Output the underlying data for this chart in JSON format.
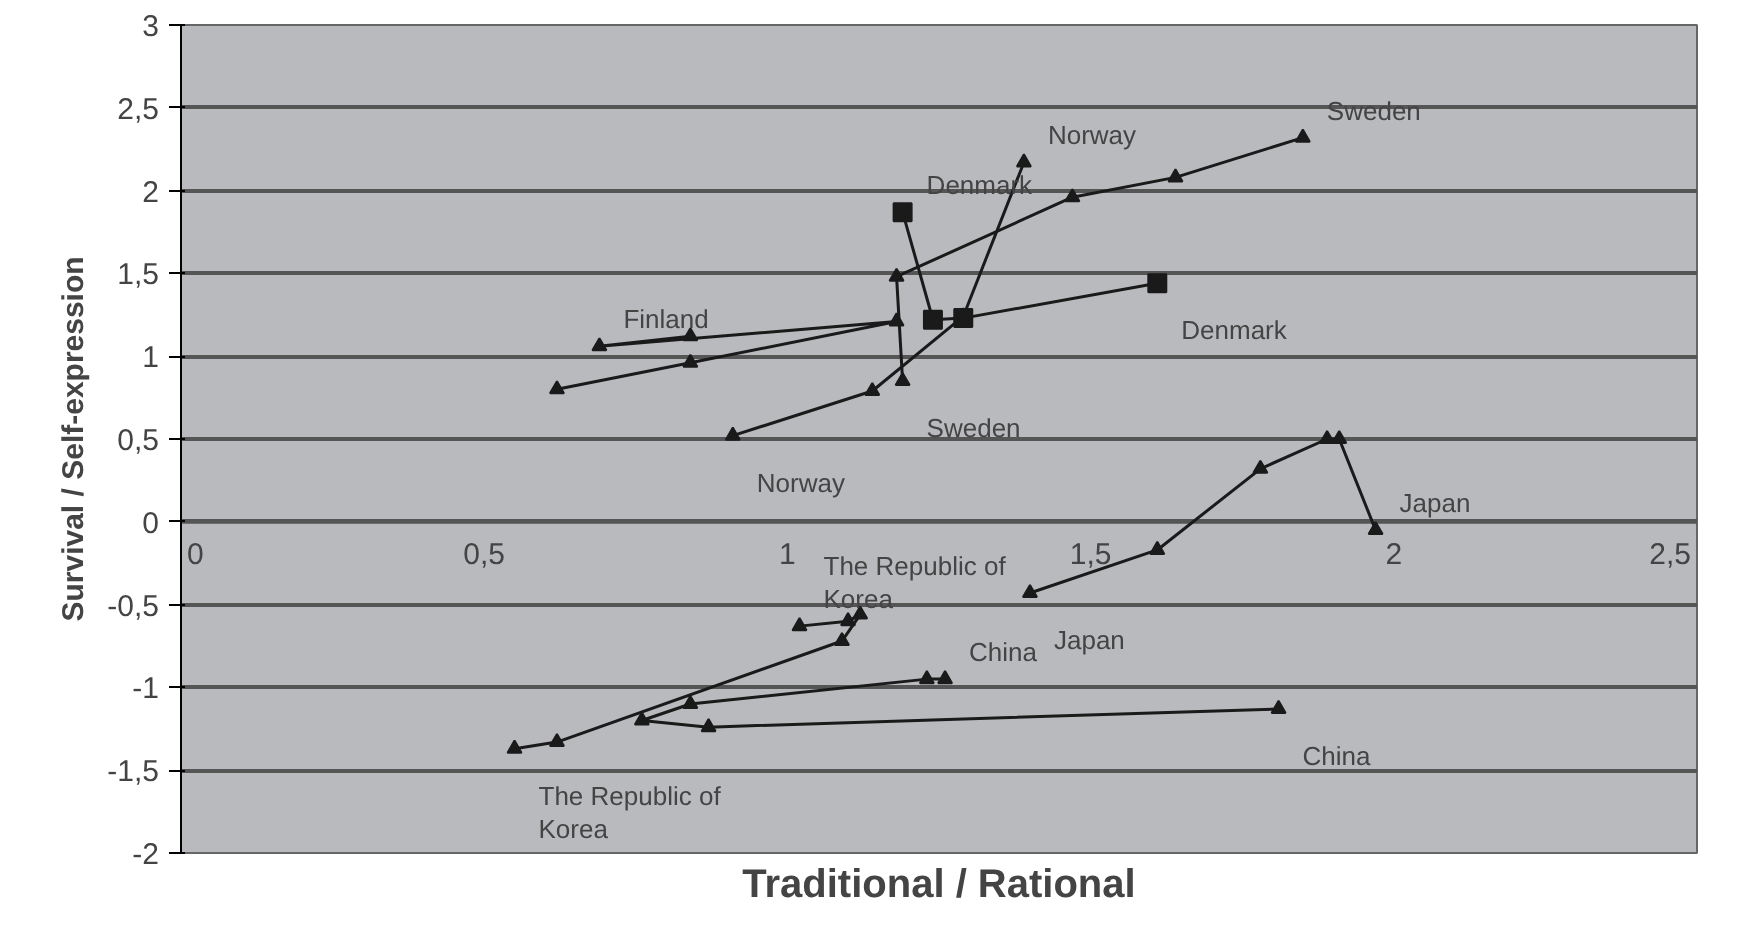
{
  "chart_data": {
    "type": "line",
    "xlabel": "Traditional / Rational",
    "ylabel": "Survival / Self-expression",
    "xlim": [
      0,
      2.5
    ],
    "xticks": [
      0,
      {
        "value": 0.5,
        "label": "0,5"
      },
      1,
      {
        "value": 1.5,
        "label": "1,5"
      },
      2,
      {
        "value": 2.5,
        "label": "2,5"
      }
    ],
    "ylim": [
      -2,
      3
    ],
    "yticks": [
      {
        "value": -2,
        "label": "-2"
      },
      {
        "value": -1.5,
        "label": "-1,5"
      },
      -1,
      {
        "value": -0.5,
        "label": "-0,5"
      },
      0,
      {
        "value": 0.5,
        "label": "0,5"
      },
      1,
      {
        "value": 1.5,
        "label": "1,5"
      },
      2,
      {
        "value": 2.5,
        "label": "2,5"
      },
      3
    ],
    "grid": "y",
    "marker": "triangle",
    "line_style": "solid",
    "series": [
      {
        "color": "#1a1a1a",
        "x": [
          1.19,
          1.18,
          1.47,
          1.64,
          1.85
        ],
        "values": [
          0.85,
          1.48,
          1.96,
          2.08,
          2.32
        ]
      },
      {
        "color": "#1a1a1a",
        "x": [
          0.91,
          1.14,
          1.29,
          1.39
        ],
        "values": [
          0.52,
          0.79,
          1.24,
          2.17
        ]
      },
      {
        "color": "#1a1a1a",
        "marker": "square",
        "x": [
          1.61,
          1.29,
          1.24,
          1.19
        ],
        "values": [
          1.44,
          1.23,
          1.22,
          1.87
        ]
      },
      {
        "color": "#1a1a1a",
        "x": [
          0.62,
          0.84,
          1.18,
          0.69,
          0.84
        ],
        "values": [
          0.8,
          0.96,
          1.21,
          1.06,
          1.12
        ]
      },
      {
        "color": "#1a1a1a",
        "x": [
          1.4,
          1.61,
          1.78,
          1.89,
          1.91,
          1.97
        ],
        "values": [
          -0.43,
          -0.17,
          0.32,
          0.5,
          0.5,
          -0.05
        ]
      },
      {
        "color": "#1a1a1a",
        "x": [
          1.81,
          0.87,
          0.76,
          0.84,
          1.23,
          1.26
        ],
        "values": [
          -1.13,
          -1.24,
          -1.2,
          -1.1,
          -0.95,
          -0.95
        ]
      },
      {
        "color": "#1a1a1a",
        "x": [
          0.55,
          0.62,
          1.09,
          1.12,
          1.1,
          1.02
        ],
        "values": [
          -1.37,
          -1.33,
          -0.72,
          -0.56,
          -0.6,
          -0.63
        ]
      }
    ],
    "annotations": [
      {
        "text": "Sweden",
        "x": 1.85,
        "y": 2.32
      },
      {
        "text": "Sweden",
        "x": 1.19,
        "y": 0.85
      },
      {
        "text": "Norway",
        "x": 1.39,
        "y": 2.17
      },
      {
        "text": "Norway",
        "x": 0.91,
        "y": 0.52
      },
      {
        "text": "Denmark",
        "x": 1.61,
        "y": 1.44
      },
      {
        "text": "Denmark",
        "x": 1.19,
        "y": 1.87
      },
      {
        "text": "Finland",
        "x": 0.69,
        "y": 1.06
      },
      {
        "text": "Japan",
        "x": 1.97,
        "y": -0.05
      },
      {
        "text": "Japan",
        "x": 1.4,
        "y": -0.43
      },
      {
        "text": "China",
        "x": 1.26,
        "y": -0.95
      },
      {
        "text": "China",
        "x": 1.81,
        "y": -1.13
      },
      {
        "text": "The Republic of\nKorea",
        "x": 1.02,
        "y": -0.63
      },
      {
        "text": "The Republic of\nKorea",
        "x": 0.55,
        "y": -1.37
      }
    ]
  }
}
